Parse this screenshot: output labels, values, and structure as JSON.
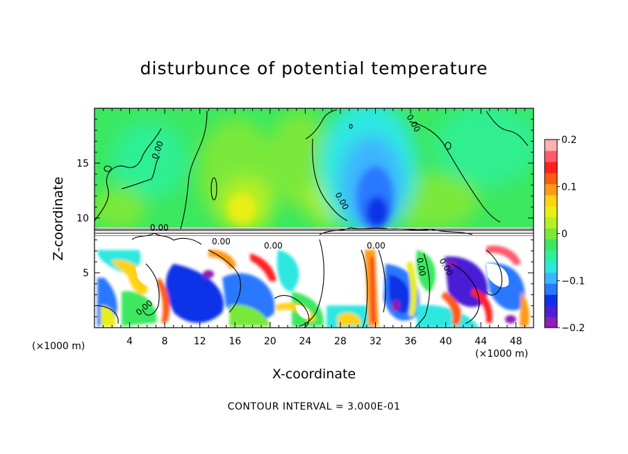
{
  "chart_data": {
    "type": "heatmap",
    "title": "disturbunce of potential temperature",
    "xlabel": "X-coordinate",
    "ylabel": "Z-coordinate",
    "x_unit": "(×1000 m)",
    "y_unit": "(×1000 m)",
    "contour_interval": "CONTOUR INTERVAL = 3.000E-01",
    "xlim": [
      0,
      50
    ],
    "ylim": [
      0,
      20
    ],
    "x_ticks": [
      "4",
      "8",
      "12",
      "16",
      "20",
      "24",
      "28",
      "32",
      "36",
      "40",
      "44",
      "48"
    ],
    "y_ticks": [
      "5",
      "10",
      "15"
    ],
    "colorbar": {
      "range": [
        -0.2,
        0.2
      ],
      "tick_labels": [
        "0.2",
        "0.1",
        "0",
        "−0.1",
        "−0.2"
      ],
      "colors": [
        "#8e1fb4",
        "#4a1fd6",
        "#1030e8",
        "#2a78ff",
        "#3cb4ff",
        "#2ee8e0",
        "#2cf0a0",
        "#3ce860",
        "#7ae83a",
        "#b4f024",
        "#e8ee18",
        "#ffd214",
        "#ff9a14",
        "#ff5a14",
        "#ff2020",
        "#ff5a6e",
        "#ffb0b0"
      ]
    },
    "contour_labels": [
      "0.00",
      "0.00",
      "0.00",
      "0.00",
      "0.00",
      "0.00",
      "0.00",
      "0.00",
      "0.00",
      "0.00"
    ],
    "features": {
      "upper_layer": "weak disturbance (~0) above z≈9, negative cell near x≈32",
      "lower_layer": "strong turbulent disturbance below z≈8"
    }
  }
}
